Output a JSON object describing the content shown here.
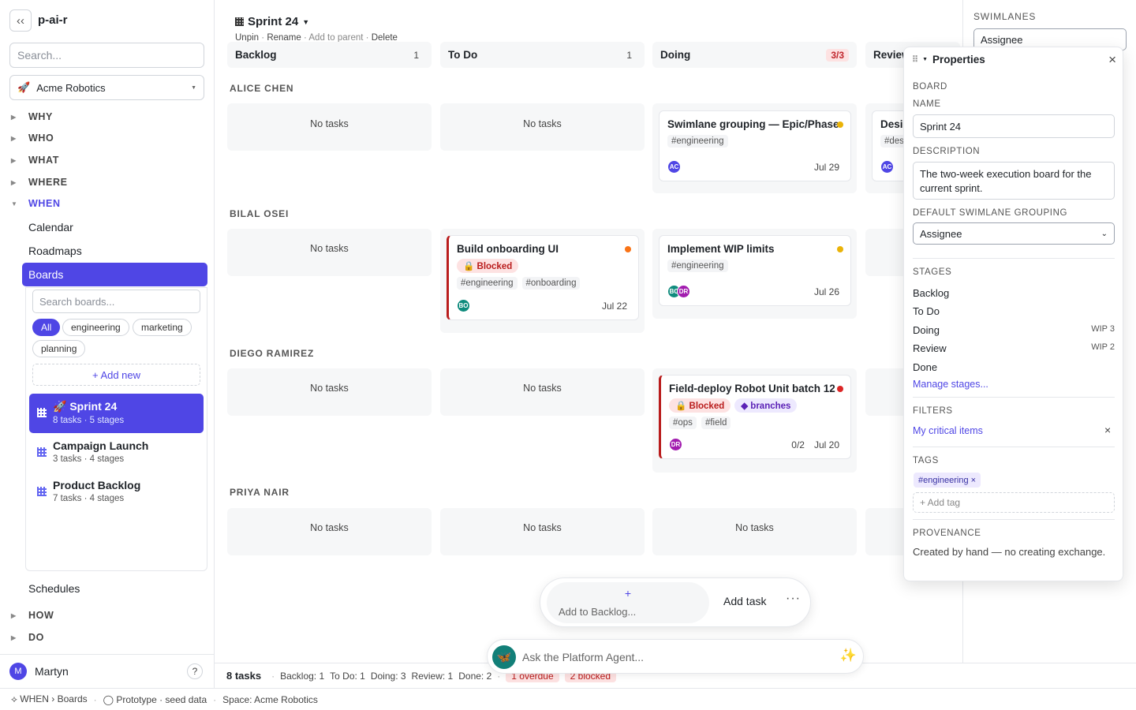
{
  "app": {
    "name": "p-ai-r",
    "collapse_glyph": "‹‹"
  },
  "sidebar": {
    "search_placeholder": "Search...",
    "workspace": {
      "emoji": "🚀",
      "name": "Acme Robotics"
    },
    "sections": [
      {
        "label": "WHY"
      },
      {
        "label": "WHO"
      },
      {
        "label": "WHAT"
      },
      {
        "label": "WHERE"
      },
      {
        "label": "WHEN"
      }
    ],
    "when_items": [
      "Calendar",
      "Roadmaps",
      "Boards",
      "Schedules"
    ],
    "after_sections": [
      {
        "label": "HOW"
      },
      {
        "label": "DO"
      }
    ],
    "boards_panel": {
      "search_placeholder": "Search boards...",
      "filters": [
        "All",
        "engineering",
        "marketing",
        "planning"
      ],
      "add_new": "+ Add new",
      "boards": [
        {
          "name": "🚀 Sprint 24",
          "meta": "8 tasks · 5 stages"
        },
        {
          "name": "Campaign Launch",
          "meta": "3 tasks · 4 stages"
        },
        {
          "name": "Product Backlog",
          "meta": "7 tasks · 4 stages"
        }
      ]
    },
    "user": {
      "initial": "M",
      "name": "Martyn",
      "help": "?"
    }
  },
  "statusbar": {
    "crumb": "⟡ WHEN › Boards",
    "proto": "◯ Prototype · seed data",
    "space": "Space: Acme Robotics"
  },
  "board": {
    "title": "Sprint 24",
    "actions": {
      "unpin": "Unpin",
      "rename": "Rename",
      "add_parent": "Add to parent",
      "delete": "Delete"
    },
    "columns": [
      {
        "name": "Backlog",
        "count": "1"
      },
      {
        "name": "To Do",
        "count": "1"
      },
      {
        "name": "Doing",
        "count": "3/3"
      },
      {
        "name": "Review",
        "count": ""
      }
    ],
    "empty_label": "No tasks",
    "lanes": [
      "ALICE CHEN",
      "BILAL OSEI",
      "DIEGO RAMIREZ",
      "PRIYA NAIR"
    ],
    "cards": {
      "swimlane": {
        "title": "Swimlane grouping — Epic/Phase",
        "tags": [
          "#engineering"
        ],
        "avatar": "AC",
        "date": "Jul 29",
        "priority_color": "#eab308"
      },
      "design": {
        "title": "Desi",
        "tags": [
          "#des"
        ],
        "avatar": "AC"
      },
      "onboarding": {
        "title": "Build onboarding UI",
        "badge": "🔒 Blocked",
        "tags": [
          "#engineering",
          "#onboarding"
        ],
        "avatar": "BO",
        "date": "Jul 22",
        "priority_color": "#f97316"
      },
      "wip": {
        "title": "Implement WIP limits",
        "tags": [
          "#engineering"
        ],
        "avatars": [
          "BO",
          "DR"
        ],
        "date": "Jul 26",
        "priority_color": "#eab308"
      },
      "field": {
        "title": "Field-deploy Robot Unit batch 12",
        "badge": "🔒 Blocked",
        "badge2": "◆ branches",
        "tags": [
          "#ops",
          "#field"
        ],
        "avatar": "DR",
        "progress": "0/2",
        "date": "Jul 20",
        "priority_color": "#dc2626"
      }
    }
  },
  "rail": {
    "label": "SWIMLANES",
    "value": "Assignee"
  },
  "properties": {
    "title": "Properties",
    "board_label": "BOARD",
    "name_label": "NAME",
    "name_value": "Sprint 24",
    "desc_label": "DESCRIPTION",
    "desc_value": "The two-week execution board for the current sprint.",
    "grouping_label": "DEFAULT SWIMLANE GROUPING",
    "grouping_value": "Assignee",
    "stages_label": "STAGES",
    "stages": [
      {
        "name": "Backlog",
        "wip": ""
      },
      {
        "name": "To Do",
        "wip": ""
      },
      {
        "name": "Doing",
        "wip": "WIP 3"
      },
      {
        "name": "Review",
        "wip": "WIP 2"
      },
      {
        "name": "Done",
        "wip": ""
      }
    ],
    "manage_stages": "Manage stages...",
    "filters_label": "FILTERS",
    "filter": "My critical items",
    "tags_label": "TAGS",
    "tag": "#engineering ×",
    "add_tag": "+ Add tag",
    "provenance_label": "PROVENANCE",
    "provenance": "Created by hand — no creating exchange."
  },
  "quick_add": {
    "plus": "+",
    "placeholder": "Add to Backlog...",
    "add_task": "Add task",
    "more": "···"
  },
  "footer": {
    "total": "8 tasks",
    "backlog": "Backlog: 1",
    "todo": "To Do: 1",
    "doing": "Doing: 3",
    "review": "Review: 1",
    "done": "Done: 2",
    "overdue": "1 overdue",
    "blocked": "2 blocked"
  },
  "agent": {
    "placeholder": "Ask the Platform Agent...",
    "logo": "🦋",
    "sparkle": "✨"
  },
  "colors": {
    "accent": "#4f46e5",
    "blocked": "#b91c1c",
    "avatar_ac": "#4f46e5",
    "avatar_bo": "#0f8b7d",
    "avatar_dr": "#a21caf"
  }
}
